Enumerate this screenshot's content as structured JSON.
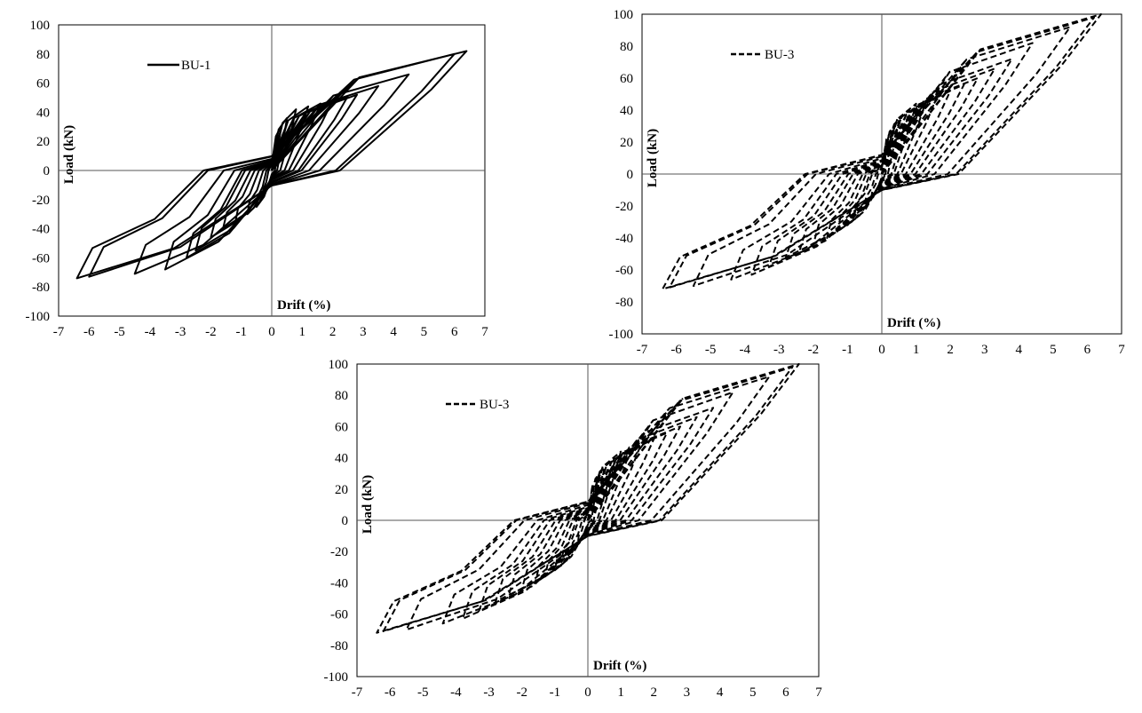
{
  "chart_data": [
    {
      "type": "line",
      "title": "",
      "xlabel": "Drift (%)",
      "ylabel": "Load (kN)",
      "xlim": [
        -7,
        7
      ],
      "ylim": [
        -100,
        100
      ],
      "x_ticks": [
        "-7",
        "-6",
        "-5",
        "-4",
        "-3",
        "-2",
        "-1",
        "0",
        "1",
        "2",
        "3",
        "4",
        "5",
        "6",
        "7"
      ],
      "y_ticks": [
        "100",
        "80",
        "60",
        "40",
        "20",
        "0",
        "-20",
        "-40",
        "-60",
        "-80",
        "-100"
      ],
      "legend_position": "top-left",
      "line_style": "solid",
      "series": [
        {
          "name": "BU-1",
          "loops": [
            {
              "amp": 0.3,
              "pos": 30,
              "neg": -18
            },
            {
              "amp": 0.5,
              "pos": 36,
              "neg": -25
            },
            {
              "amp": 0.8,
              "pos": 42,
              "neg": -30
            },
            {
              "amp": 1.2,
              "pos": 44,
              "neg": -36
            },
            {
              "amp": 1.6,
              "pos": 46,
              "neg": -40
            },
            {
              "amp": 2.0,
              "pos": 48,
              "neg": -46
            },
            {
              "amp": 2.5,
              "pos": 51,
              "neg": -55
            },
            {
              "amp": 2.8,
              "pos": 52,
              "neg": -60
            },
            {
              "amp": 3.5,
              "pos": 58,
              "neg": -68
            },
            {
              "amp": 4.5,
              "pos": 66,
              "neg": -71
            },
            {
              "amp": 6.0,
              "pos": 80,
              "neg": -73
            },
            {
              "amp": 6.4,
              "pos": 82,
              "neg": -74
            }
          ]
        }
      ]
    },
    {
      "type": "line",
      "title": "",
      "xlabel": "Drift (%)",
      "ylabel": "Load (kN)",
      "xlim": [
        -7,
        7
      ],
      "ylim": [
        -100,
        100
      ],
      "x_ticks": [
        "-7",
        "-6",
        "-5",
        "-4",
        "-3",
        "-2",
        "-1",
        "0",
        "1",
        "2",
        "3",
        "4",
        "5",
        "6",
        "7"
      ],
      "y_ticks": [
        "100",
        "80",
        "60",
        "40",
        "20",
        "0",
        "-20",
        "-40",
        "-60",
        "-80",
        "-100"
      ],
      "legend_position": "top-left",
      "line_style": "dashed",
      "series": [
        {
          "name": "BU-3",
          "loops": [
            {
              "amp": 0.3,
              "pos": 28,
              "neg": -14
            },
            {
              "amp": 0.5,
              "pos": 34,
              "neg": -20
            },
            {
              "amp": 0.8,
              "pos": 40,
              "neg": -26
            },
            {
              "amp": 1.0,
              "pos": 44,
              "neg": -32
            },
            {
              "amp": 1.3,
              "pos": 46,
              "neg": -36
            },
            {
              "amp": 1.6,
              "pos": 48,
              "neg": -40
            },
            {
              "amp": 2.0,
              "pos": 52,
              "neg": -44
            },
            {
              "amp": 2.4,
              "pos": 56,
              "neg": -48
            },
            {
              "amp": 2.8,
              "pos": 60,
              "neg": -52
            },
            {
              "amp": 3.3,
              "pos": 66,
              "neg": -58
            },
            {
              "amp": 3.8,
              "pos": 72,
              "neg": -63
            },
            {
              "amp": 4.4,
              "pos": 82,
              "neg": -66
            },
            {
              "amp": 5.5,
              "pos": 92,
              "neg": -70
            },
            {
              "amp": 6.2,
              "pos": 98,
              "neg": -71
            },
            {
              "amp": 6.4,
              "pos": 100,
              "neg": -72
            }
          ]
        }
      ]
    },
    {
      "type": "line",
      "title": "",
      "xlabel": "Drift (%)",
      "ylabel": "Load (kN)",
      "xlim": [
        -7,
        7
      ],
      "ylim": [
        -100,
        100
      ],
      "x_ticks": [
        "-7",
        "-6",
        "-5",
        "-4",
        "-3",
        "-2",
        "-1",
        "0",
        "1",
        "2",
        "3",
        "4",
        "5",
        "6",
        "7"
      ],
      "y_ticks": [
        "100",
        "80",
        "60",
        "40",
        "20",
        "0",
        "-20",
        "-40",
        "-60",
        "-80",
        "-100"
      ],
      "legend_position": "top-left",
      "line_style": "dashed",
      "series": [
        {
          "name": "BU-3",
          "loops": [
            {
              "amp": 0.3,
              "pos": 28,
              "neg": -14
            },
            {
              "amp": 0.5,
              "pos": 34,
              "neg": -20
            },
            {
              "amp": 0.8,
              "pos": 40,
              "neg": -26
            },
            {
              "amp": 1.0,
              "pos": 44,
              "neg": -32
            },
            {
              "amp": 1.3,
              "pos": 46,
              "neg": -36
            },
            {
              "amp": 1.6,
              "pos": 48,
              "neg": -40
            },
            {
              "amp": 2.0,
              "pos": 52,
              "neg": -44
            },
            {
              "amp": 2.4,
              "pos": 56,
              "neg": -48
            },
            {
              "amp": 2.8,
              "pos": 60,
              "neg": -52
            },
            {
              "amp": 3.3,
              "pos": 66,
              "neg": -58
            },
            {
              "amp": 3.8,
              "pos": 72,
              "neg": -63
            },
            {
              "amp": 4.4,
              "pos": 82,
              "neg": -66
            },
            {
              "amp": 5.5,
              "pos": 92,
              "neg": -70
            },
            {
              "amp": 6.2,
              "pos": 98,
              "neg": -71
            },
            {
              "amp": 6.4,
              "pos": 100,
              "neg": -72
            }
          ]
        }
      ]
    }
  ]
}
